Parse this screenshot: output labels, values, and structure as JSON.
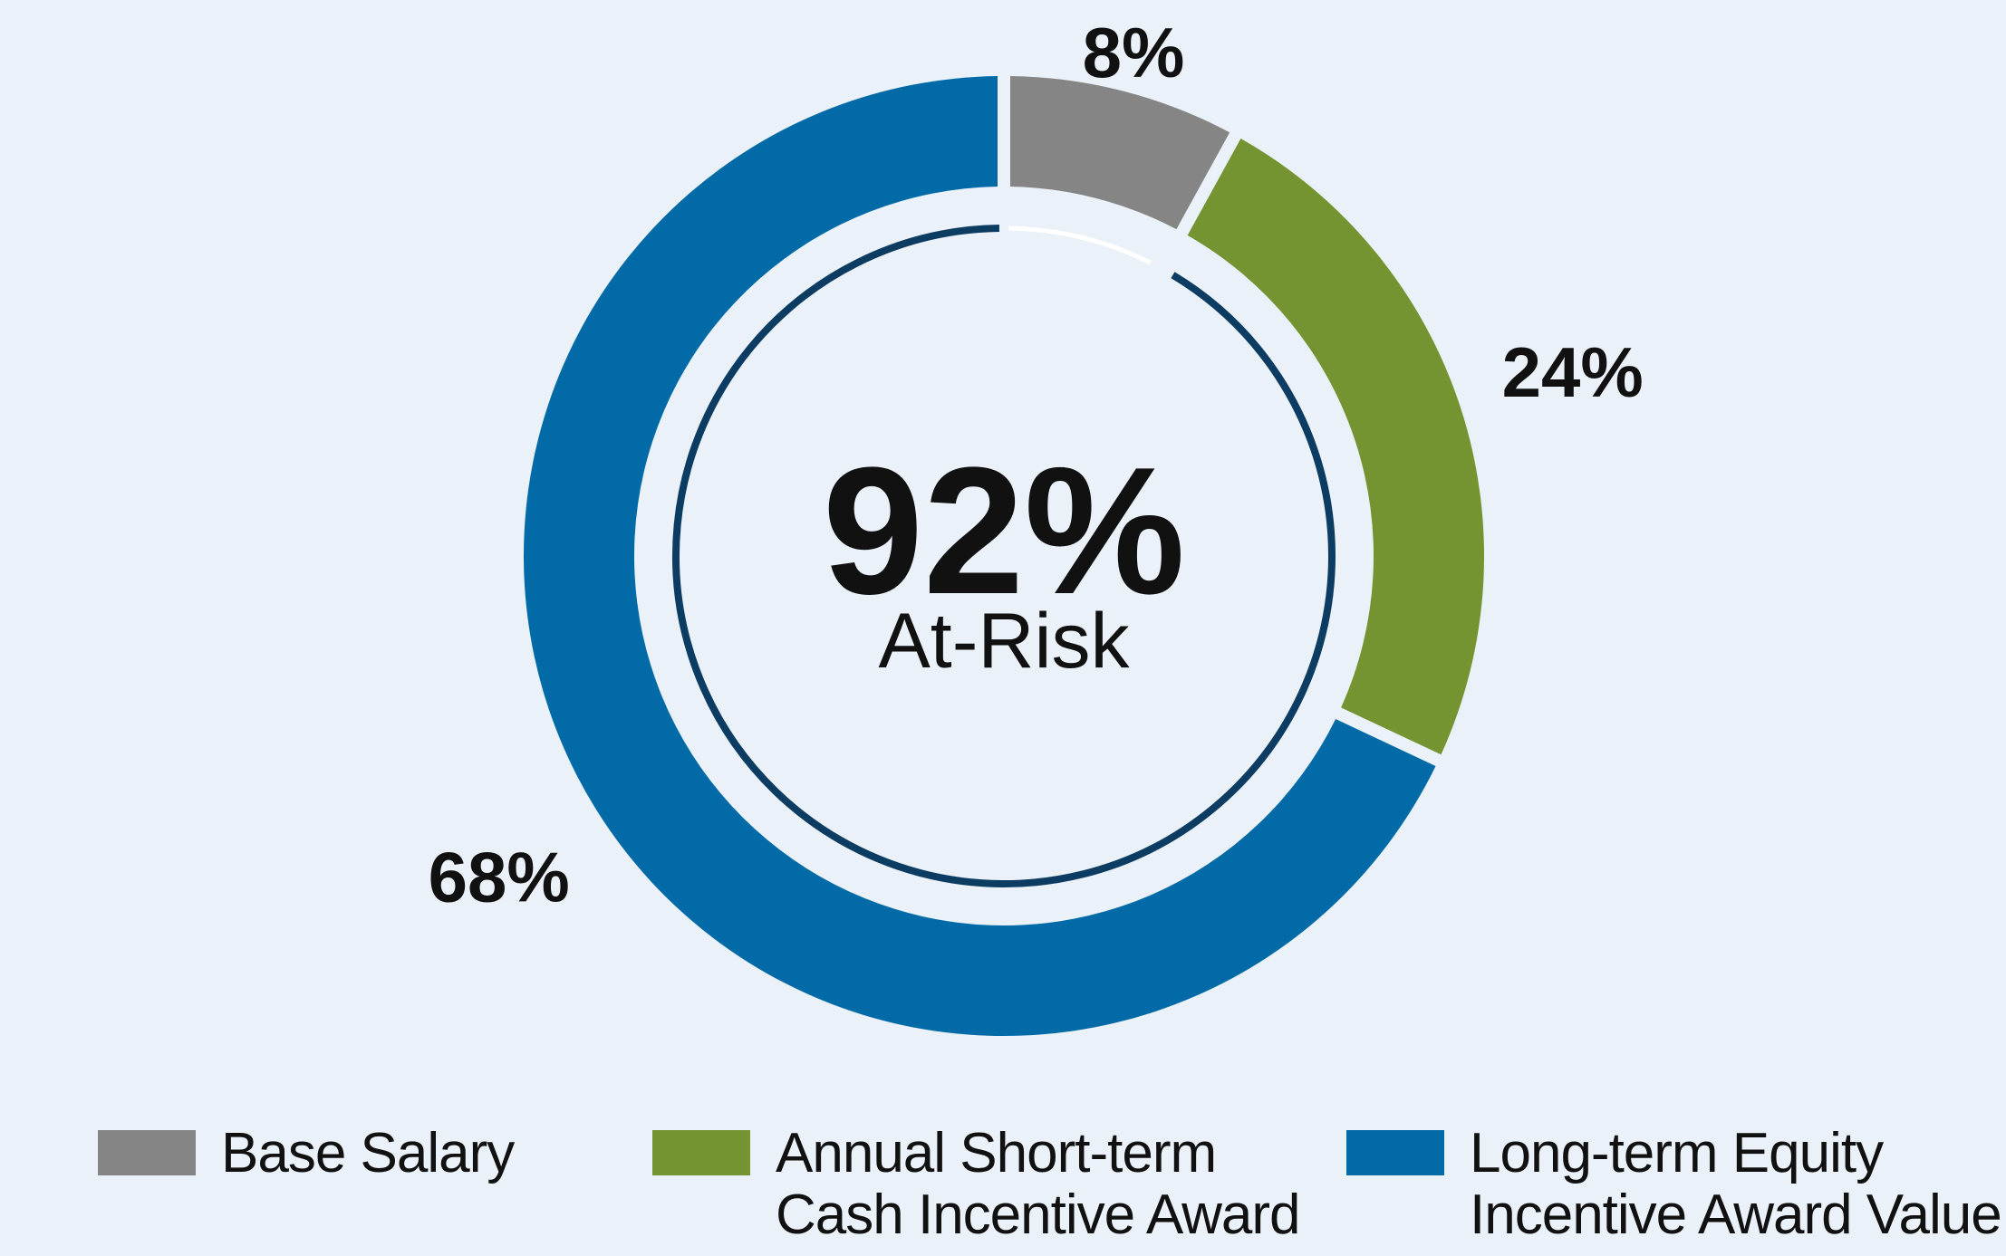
{
  "chart_data": {
    "type": "pie",
    "variant": "donut",
    "categories": [
      "Base Salary",
      "Annual Short-term Cash Incentive Award",
      "Long-term Equity Incentive Award Value"
    ],
    "values": [
      8,
      24,
      68
    ],
    "slice_labels": [
      "8%",
      "24%",
      "68%"
    ],
    "colors": [
      "#858585",
      "#739431",
      "#026aa7"
    ],
    "center": {
      "value": "92%",
      "caption": "At-Risk"
    },
    "highlight_arc": {
      "from_category": "Annual Short-term Cash Incentive Award",
      "to_category": "Long-term Equity Incentive Award Value",
      "share": 92,
      "color": "#0d3c63"
    },
    "legend": {
      "placement": "bottom",
      "items": [
        {
          "lines": [
            "Base Salary"
          ],
          "color": "#858585"
        },
        {
          "lines": [
            "Annual Short-term",
            "Cash Incentive Award"
          ],
          "color": "#739431"
        },
        {
          "lines": [
            "Long-term Equity",
            "Incentive Award Value"
          ],
          "color": "#026aa7"
        }
      ]
    }
  },
  "background": "#eaf1f8"
}
